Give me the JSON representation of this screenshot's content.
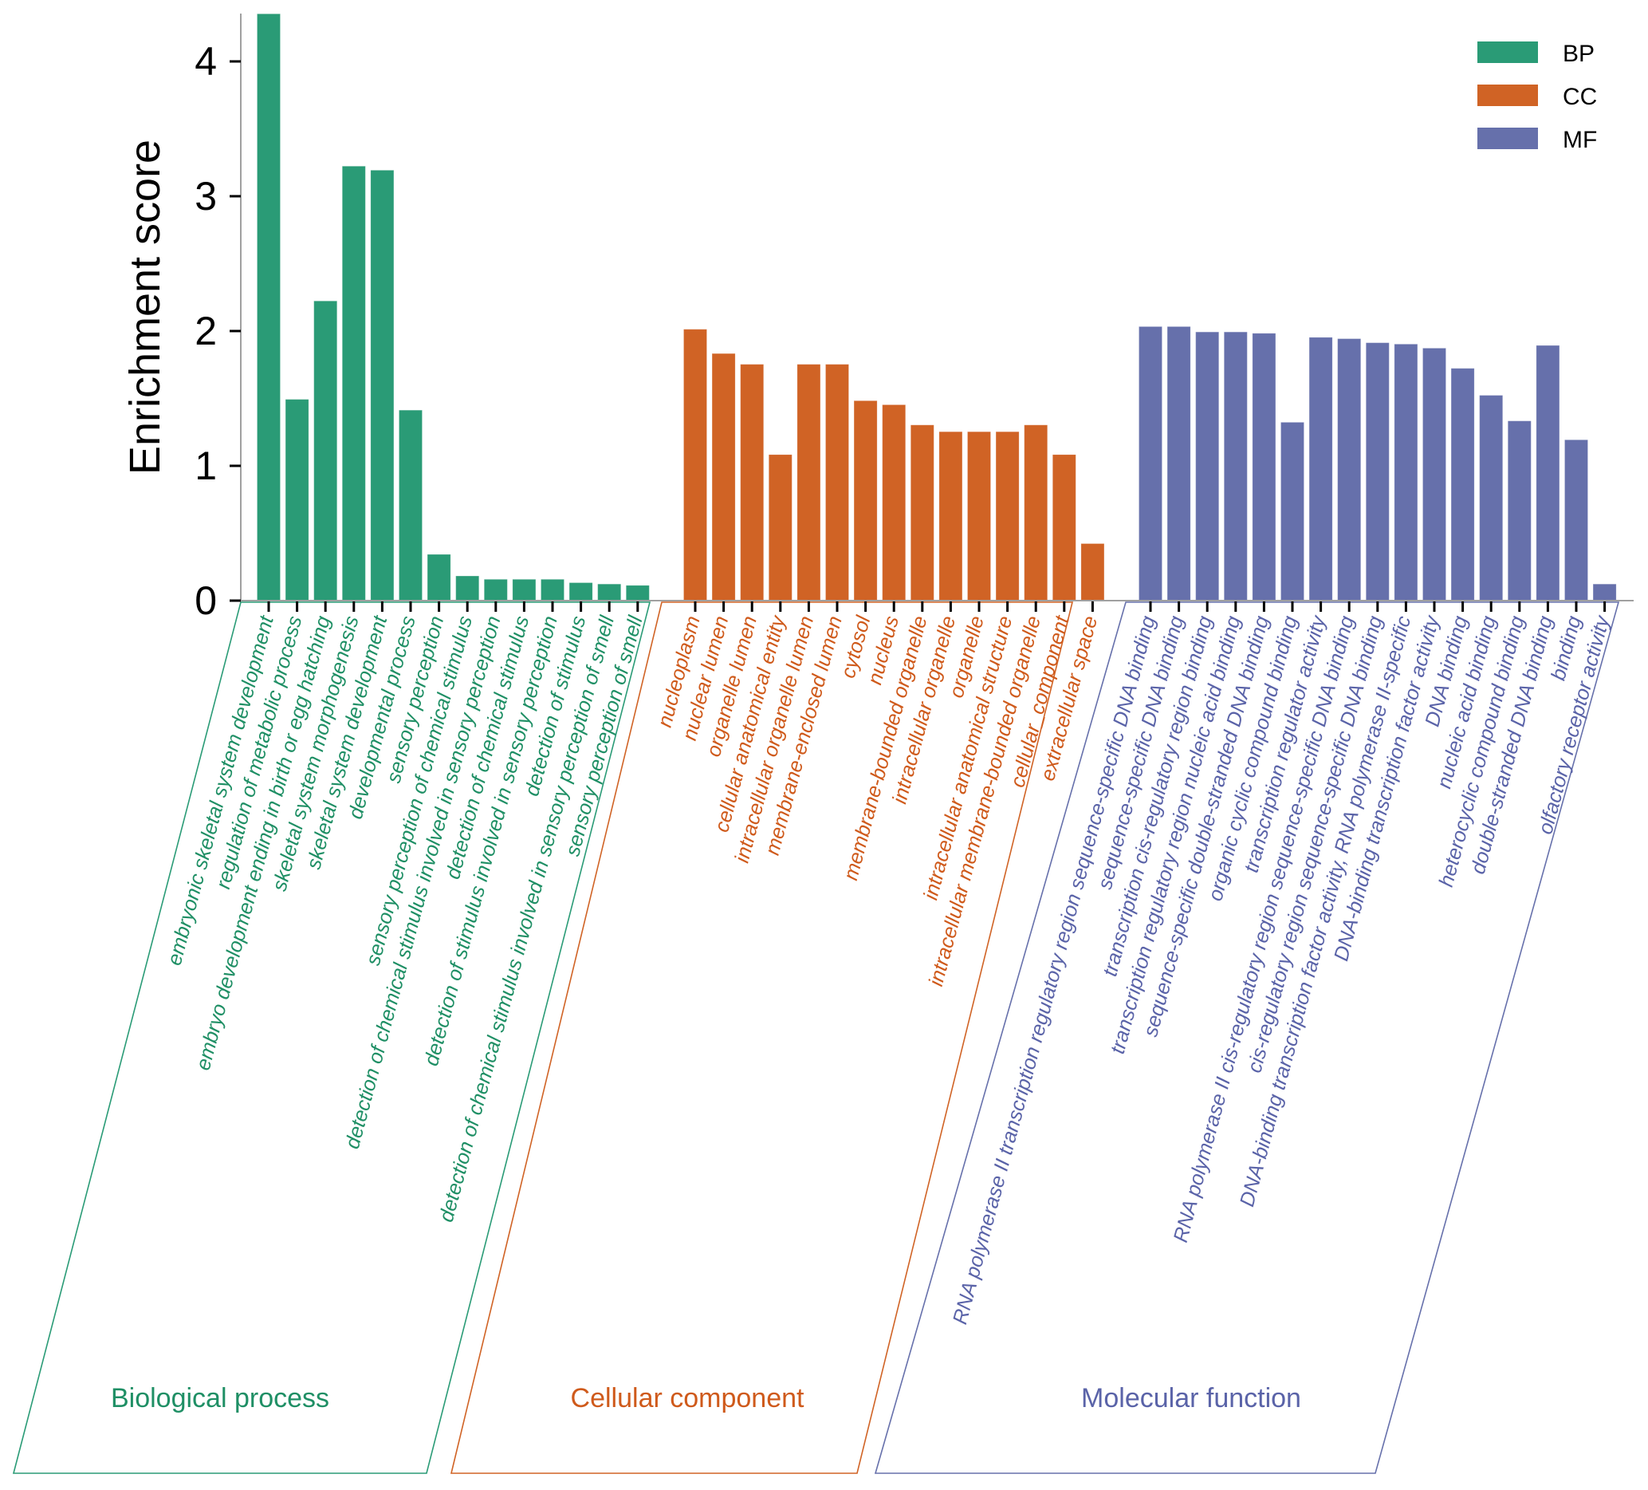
{
  "chart_data": {
    "type": "bar",
    "title": "",
    "xlabel": "",
    "ylabel": "Enrichment score",
    "ylim": [
      0,
      4.36
    ],
    "yticks": [
      0,
      1,
      2,
      3,
      4
    ],
    "grid": false,
    "legend": {
      "position": "top-right",
      "entries": [
        {
          "key": "BP",
          "label": "BP",
          "color": "#2a9b76"
        },
        {
          "key": "CC",
          "label": "CC",
          "color": "#d06325"
        },
        {
          "key": "MF",
          "label": "MF",
          "color": "#6670ab"
        }
      ]
    },
    "series": [
      {
        "name": "BP",
        "group_title": "Biological   process",
        "color": "#2a9b76",
        "label_color": "#1f8f65",
        "categories": [
          "embryonic skeletal system development",
          "regulation of metabolic process",
          "embryo development ending in birth or egg hatching",
          "skeletal system morphogenesis",
          "skeletal system development",
          "developmental process",
          "sensory perception",
          "sensory perception of chemical stimulus",
          "detection of chemical stimulus involved in sensory perception",
          "detection of chemical stimulus",
          "detection of stimulus involved in sensory perception",
          "detection of stimulus",
          "detection of chemical stimulus involved in sensory perception of smell",
          "sensory perception of smell"
        ],
        "values": [
          4.35,
          1.49,
          2.22,
          3.22,
          3.19,
          1.41,
          0.34,
          0.18,
          0.155,
          0.155,
          0.155,
          0.13,
          0.12,
          0.11
        ]
      },
      {
        "name": "CC",
        "group_title": "Cellular component",
        "color": "#d06325",
        "label_color": "#cf5a1b",
        "categories": [
          "nucleoplasm",
          "nuclear lumen",
          "organelle lumen",
          "cellular anatomical entity",
          "intracellular organelle lumen",
          "membrane-enclosed lumen",
          "cytosol",
          "nucleus",
          "membrane-bounded organelle",
          "intracellular organelle",
          "organelle",
          "intracellular anatomical structure",
          "intracellular membrane-bounded organelle",
          "cellular_component",
          "extracellular space"
        ],
        "values": [
          2.01,
          1.83,
          1.75,
          1.08,
          1.75,
          1.75,
          1.48,
          1.45,
          1.3,
          1.25,
          1.25,
          1.25,
          1.3,
          1.08,
          0.42
        ]
      },
      {
        "name": "MF",
        "group_title": "Molecular function",
        "color": "#6670ab",
        "label_color": "#5a63a8",
        "categories": [
          "RNA polymerase II transcription regulatory region sequence-specific DNA binding",
          "sequence-specific DNA binding",
          "transcription cis-regulatory region binding",
          "transcription regulatory region nucleic acid binding",
          "sequence-specific double-stranded DNA binding",
          "organic cyclic compound binding",
          "transcription regulator activity",
          "RNA polymerase II cis-regulatory region sequence-specific DNA binding",
          "cis-regulatory region sequence-specific DNA binding",
          "DNA-binding transcription factor activity, RNA polymerase II-specific",
          "DNA-binding transcription factor activity",
          "DNA binding",
          "nucleic acid binding",
          "heterocyclic compound binding",
          "double-stranded DNA binding",
          "binding",
          "olfactory receptor activity"
        ],
        "values": [
          2.03,
          2.03,
          1.99,
          1.99,
          1.98,
          1.32,
          1.95,
          1.94,
          1.91,
          1.9,
          1.87,
          1.72,
          1.52,
          1.33,
          1.89,
          1.19,
          0.12
        ]
      }
    ]
  }
}
